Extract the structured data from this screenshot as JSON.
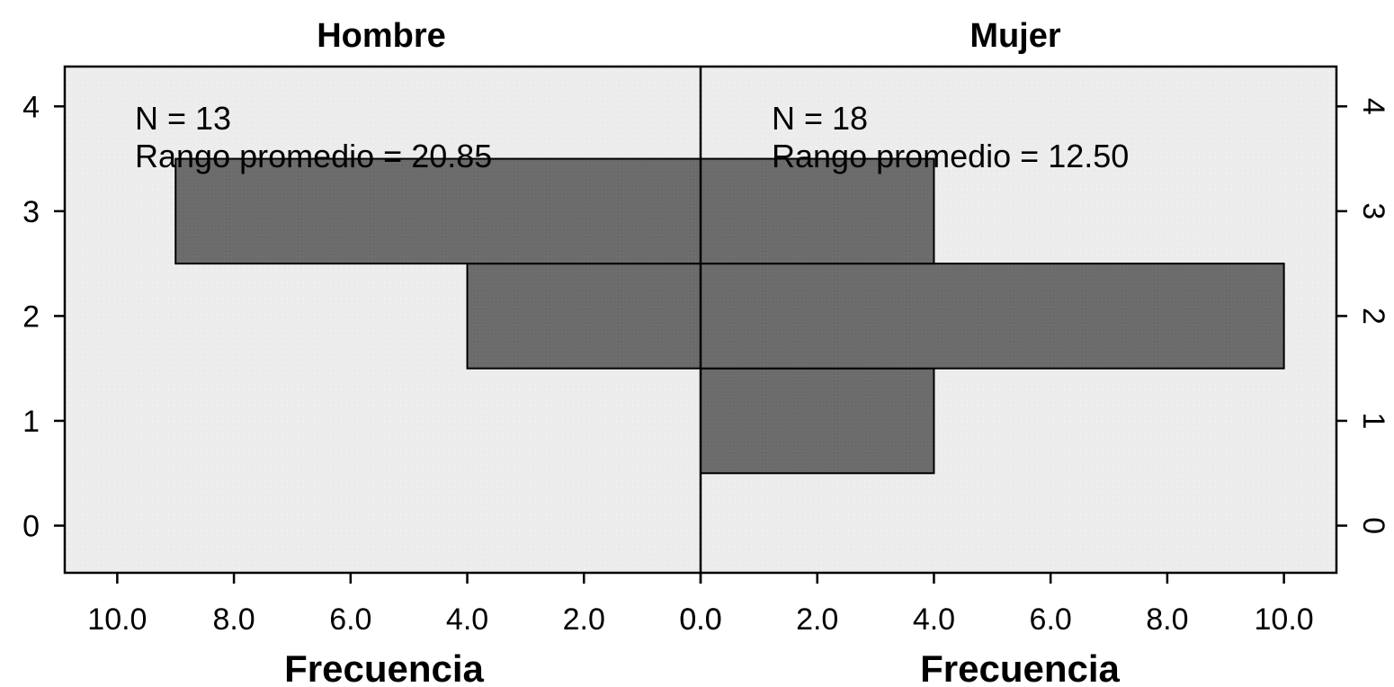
{
  "chart_data": {
    "type": "bar",
    "orientation": "horizontal-mirrored",
    "categories": [
      "1",
      "2",
      "3"
    ],
    "y_ticks": [
      "0",
      "1",
      "2",
      "3",
      "4"
    ],
    "y_range": [
      -0.45,
      4.38
    ],
    "x_range": [
      0,
      10.9
    ],
    "x_ticks": [
      "10.0",
      "8.0",
      "6.0",
      "4.0",
      "2.0",
      "0.0"
    ],
    "x_ticks_right": [
      "0.0",
      "2.0",
      "4.0",
      "6.0",
      "8.0",
      "10.0"
    ],
    "xlabel": "Frecuencia",
    "bar_color": "#6b6b6b",
    "plot_bg": "#eeeeee",
    "panels": [
      {
        "title": "Hombre",
        "side": "left",
        "n_label": "N = 13",
        "rank_label": "Rango promedio = 20.85",
        "values": [
          0,
          4,
          9
        ]
      },
      {
        "title": "Mujer",
        "side": "right",
        "n_label": "N = 18",
        "rank_label": "Rango promedio = 12.50",
        "values": [
          4,
          10,
          4
        ]
      }
    ]
  }
}
